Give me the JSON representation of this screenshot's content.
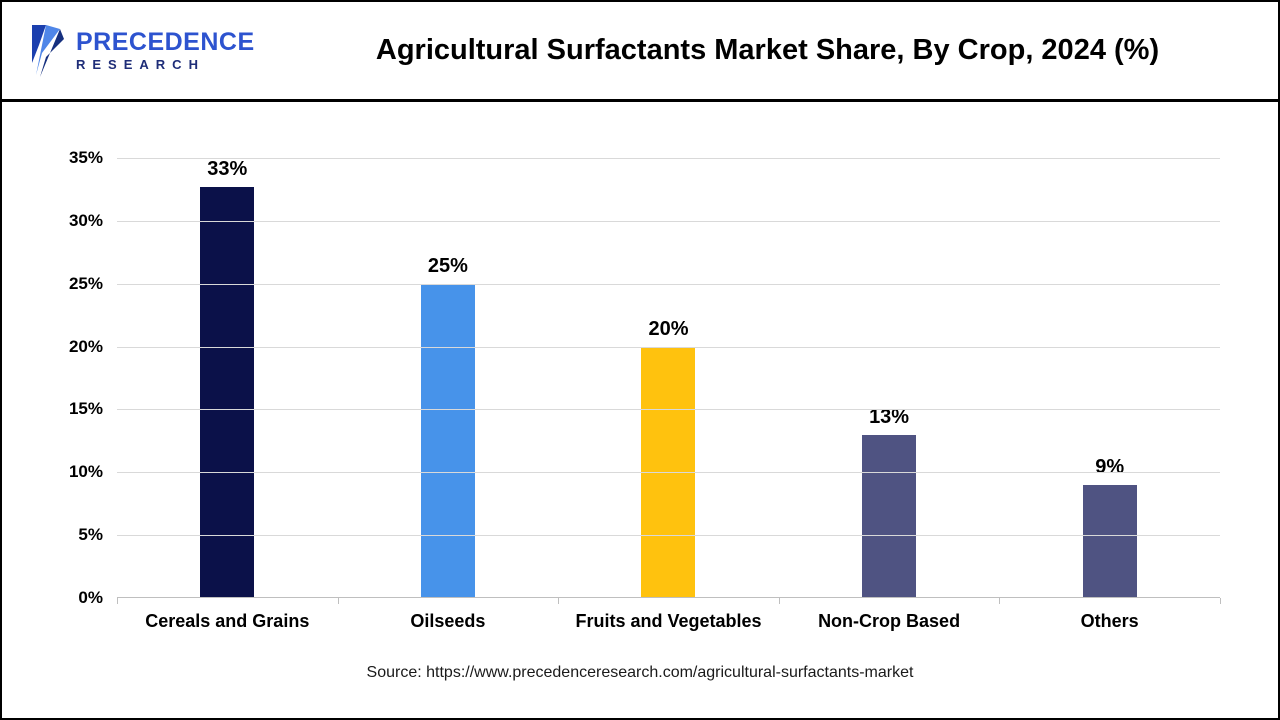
{
  "header": {
    "logo": {
      "line1": "PRECEDENCE",
      "line2": "RESEARCH"
    },
    "title": "Agricultural Surfactants Market Share, By Crop, 2024 (%)"
  },
  "chart_data": {
    "type": "bar",
    "title": "Agricultural Surfactants Market Share, By Crop, 2024 (%)",
    "categories": [
      "Cereals and Grains",
      "Oilseeds",
      "Fruits and Vegetables",
      "Non-Crop Based",
      "Others"
    ],
    "values": [
      33,
      25,
      20,
      13,
      9
    ],
    "value_labels": [
      "33%",
      "25%",
      "20%",
      "13%",
      "9%"
    ],
    "bar_colors": [
      "#0b1149",
      "#4793ea",
      "#ffc20e",
      "#4f5382",
      "#4f5382"
    ],
    "xlabel": "",
    "ylabel": "",
    "ylim": [
      0,
      35
    ],
    "ytick_step": 5,
    "ytick_labels": [
      "0%",
      "5%",
      "10%",
      "15%",
      "20%",
      "25%",
      "30%",
      "35%"
    ],
    "grid": true,
    "legend": false
  },
  "footer": {
    "source": "Source: https://www.precedenceresearch.com/agricultural-surfactants-market"
  }
}
